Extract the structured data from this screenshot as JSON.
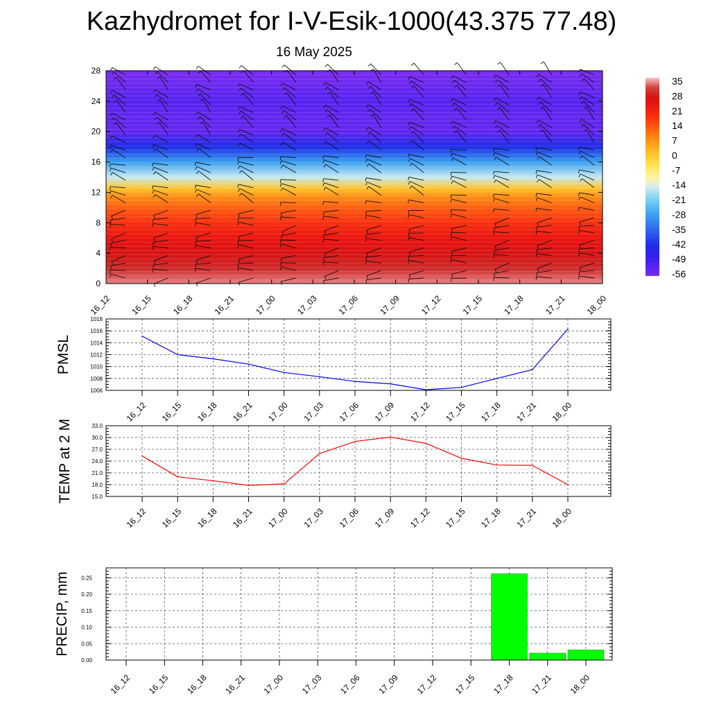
{
  "title": "Kazhydromet for I-V-Esik-1000(43.375 77.48)",
  "subtitle": "16 May 2025",
  "colors": {
    "pmsl_line": "#0000ff",
    "temp_line": "#ff0000",
    "precip_bar": "#00ff00",
    "grid": "#555555"
  },
  "chart_data": [
    {
      "type": "heatmap",
      "name": "temperature-cross-section",
      "x_ticks": [
        "16_12",
        "16_15",
        "16_18",
        "16_21",
        "17_00",
        "17_03",
        "17_06",
        "17_09",
        "17_12",
        "17_15",
        "17_18",
        "17_21",
        "18_00"
      ],
      "y_ticks": [
        "0",
        "4",
        "8",
        "12",
        "16",
        "20",
        "24",
        "28"
      ],
      "ylim": [
        0,
        28
      ],
      "colorbar_labels": [
        "35",
        "28",
        "21",
        "14",
        "7",
        "0",
        "-7",
        "-14",
        "-21",
        "-28",
        "-35",
        "-42",
        "-49",
        "-56"
      ],
      "colorbar_range": [
        -60,
        38
      ],
      "profile_levels": [
        0,
        2,
        4,
        6,
        8,
        10,
        11.5,
        12.5,
        14,
        16,
        18,
        20,
        22,
        24,
        26,
        28
      ],
      "profile_values": [
        36,
        32,
        28,
        24,
        19,
        13,
        7,
        0,
        -17,
        -30,
        -45,
        -57,
        -57,
        -55,
        -58,
        -60
      ],
      "wind_barbs": "shown"
    },
    {
      "type": "line",
      "ylabel": "PMSL",
      "x": [
        "16_12",
        "16_15",
        "16_18",
        "16_21",
        "17_00",
        "17_03",
        "17_06",
        "17_09",
        "17_12",
        "17_15",
        "17_18",
        "17_21",
        "18_00"
      ],
      "values": [
        1015.1,
        1012.0,
        1011.3,
        1010.4,
        1009.0,
        1008.3,
        1007.5,
        1007.1,
        1006.1,
        1006.5,
        1008.0,
        1009.5,
        1016.3
      ],
      "ylim": [
        1006,
        1018
      ],
      "y_ticks": [
        "1006",
        "1008",
        "1010",
        "1012",
        "1014",
        "1016",
        "1018"
      ],
      "grid": true
    },
    {
      "type": "line",
      "ylabel": "TEMP at 2 M",
      "x": [
        "16_12",
        "16_15",
        "16_18",
        "16_21",
        "17_00",
        "17_03",
        "17_06",
        "17_09",
        "17_12",
        "17_15",
        "17_18",
        "17_21",
        "18_00"
      ],
      "values": [
        25.3,
        20.0,
        19.0,
        17.8,
        18.2,
        25.9,
        29.0,
        30.1,
        28.5,
        24.7,
        23.0,
        22.9,
        18.0
      ],
      "ylim": [
        15,
        33
      ],
      "y_ticks": [
        "15.0",
        "18.0",
        "21.0",
        "24.0",
        "27.0",
        "30.0",
        "33.0"
      ],
      "grid": true
    },
    {
      "type": "bar",
      "ylabel": "PRECIP, mm",
      "categories": [
        "16_12",
        "16_15",
        "16_18",
        "16_21",
        "17_00",
        "17_03",
        "17_06",
        "17_09",
        "17_12",
        "17_15",
        "17_18",
        "17_21",
        "18_00"
      ],
      "values": [
        0,
        0,
        0,
        0,
        0,
        0,
        0,
        0,
        0,
        0,
        0.262,
        0.021,
        0.031
      ],
      "ylim": [
        0,
        0.28
      ],
      "y_ticks": [
        "0.00",
        "0.05",
        "0.10",
        "0.15",
        "0.20",
        "0.25"
      ],
      "grid": true
    }
  ]
}
